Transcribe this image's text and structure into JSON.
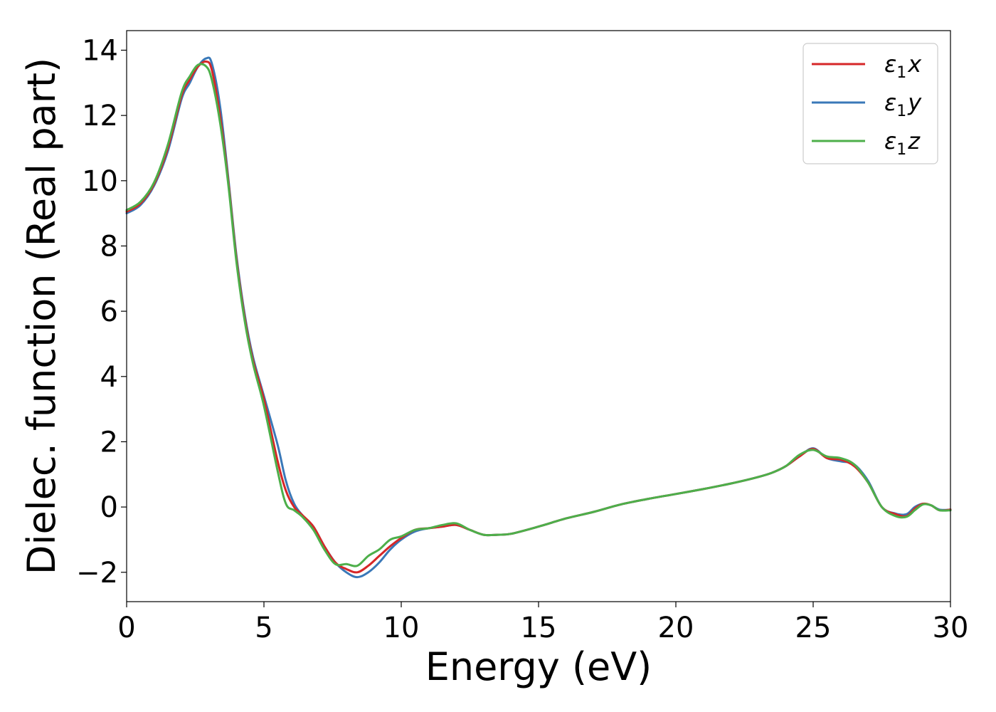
{
  "chart_data": {
    "type": "line",
    "xlabel": "Energy (eV)",
    "ylabel": "Dielec. function (Real part)",
    "xlim": [
      0,
      30
    ],
    "ylim": [
      -2.9,
      14.6
    ],
    "xticks": [
      0,
      5,
      10,
      15,
      20,
      25,
      30
    ],
    "yticks": [
      -2,
      0,
      2,
      4,
      6,
      8,
      10,
      12,
      14
    ],
    "xtick_labels": [
      "0",
      "5",
      "10",
      "15",
      "20",
      "25",
      "30"
    ],
    "ytick_labels": [
      "−2",
      "0",
      "2",
      "4",
      "6",
      "8",
      "10",
      "12",
      "14"
    ],
    "grid": false,
    "legend_position": "top-right",
    "series": [
      {
        "name": "ε1x",
        "label_base": "ε",
        "label_sub": "1",
        "label_suffix": "x",
        "color": "#d62728",
        "x": [
          0,
          0.5,
          1.0,
          1.5,
          2.0,
          2.3,
          2.6,
          2.9,
          3.1,
          3.4,
          3.7,
          4.0,
          4.3,
          4.6,
          5.0,
          5.5,
          5.8,
          6.1,
          6.4,
          6.8,
          7.2,
          7.6,
          8.0,
          8.4,
          8.8,
          9.2,
          9.6,
          10.0,
          10.5,
          11.0,
          11.5,
          12.0,
          12.5,
          13.0,
          13.5,
          14.0,
          15.0,
          16.0,
          17.0,
          18.0,
          19.0,
          20.0,
          21.0,
          22.0,
          23.0,
          23.5,
          24.0,
          24.5,
          25.0,
          25.5,
          26.0,
          26.5,
          27.0,
          27.5,
          28.0,
          28.4,
          28.7,
          29.0,
          29.3,
          29.6,
          30.0
        ],
        "y": [
          9.05,
          9.3,
          9.9,
          11.0,
          12.6,
          13.1,
          13.5,
          13.65,
          13.4,
          12.0,
          10.0,
          7.6,
          5.8,
          4.5,
          3.3,
          1.4,
          0.5,
          0.0,
          -0.25,
          -0.6,
          -1.2,
          -1.7,
          -1.9,
          -2.0,
          -1.8,
          -1.5,
          -1.2,
          -0.95,
          -0.7,
          -0.65,
          -0.6,
          -0.55,
          -0.7,
          -0.85,
          -0.85,
          -0.82,
          -0.6,
          -0.35,
          -0.15,
          0.08,
          0.25,
          0.4,
          0.55,
          0.72,
          0.92,
          1.05,
          1.25,
          1.55,
          1.78,
          1.5,
          1.45,
          1.25,
          0.75,
          0.0,
          -0.22,
          -0.28,
          -0.05,
          0.1,
          0.05,
          -0.1,
          -0.08
        ]
      },
      {
        "name": "ε1y",
        "label_base": "ε",
        "label_sub": "1",
        "label_suffix": "y",
        "color": "#3a78b8",
        "x": [
          0,
          0.5,
          1.0,
          1.5,
          2.0,
          2.3,
          2.6,
          2.9,
          3.1,
          3.4,
          3.7,
          4.0,
          4.3,
          4.6,
          5.0,
          5.5,
          5.8,
          6.1,
          6.4,
          6.8,
          7.2,
          7.6,
          8.0,
          8.4,
          8.8,
          9.2,
          9.6,
          10.0,
          10.5,
          11.0,
          11.5,
          12.0,
          12.5,
          13.0,
          13.5,
          14.0,
          15.0,
          16.0,
          17.0,
          18.0,
          19.0,
          20.0,
          21.0,
          22.0,
          23.0,
          23.5,
          24.0,
          24.5,
          25.0,
          25.5,
          26.0,
          26.5,
          27.0,
          27.5,
          28.0,
          28.4,
          28.7,
          29.0,
          29.3,
          29.6,
          30.0
        ],
        "y": [
          9.0,
          9.25,
          9.85,
          10.9,
          12.5,
          13.0,
          13.5,
          13.75,
          13.6,
          12.3,
          10.1,
          7.7,
          5.9,
          4.6,
          3.4,
          1.9,
          0.8,
          0.1,
          -0.25,
          -0.6,
          -1.2,
          -1.7,
          -2.0,
          -2.15,
          -2.0,
          -1.7,
          -1.3,
          -1.0,
          -0.75,
          -0.65,
          -0.6,
          -0.55,
          -0.7,
          -0.85,
          -0.85,
          -0.82,
          -0.6,
          -0.35,
          -0.15,
          0.08,
          0.25,
          0.4,
          0.55,
          0.72,
          0.92,
          1.05,
          1.25,
          1.55,
          1.8,
          1.5,
          1.4,
          1.3,
          0.8,
          0.0,
          -0.2,
          -0.22,
          0.0,
          0.1,
          0.05,
          -0.08,
          -0.08
        ]
      },
      {
        "name": "ε1z",
        "label_base": "ε",
        "label_sub": "1",
        "label_suffix": "z",
        "color": "#4daf4a",
        "x": [
          0,
          0.5,
          1.0,
          1.5,
          2.0,
          2.3,
          2.6,
          2.9,
          3.1,
          3.4,
          3.7,
          4.0,
          4.3,
          4.6,
          5.0,
          5.5,
          5.8,
          6.1,
          6.4,
          6.8,
          7.2,
          7.6,
          8.0,
          8.4,
          8.8,
          9.2,
          9.6,
          10.0,
          10.5,
          11.0,
          11.5,
          12.0,
          12.5,
          13.0,
          13.5,
          14.0,
          15.0,
          16.0,
          17.0,
          18.0,
          19.0,
          20.0,
          21.0,
          22.0,
          23.0,
          23.5,
          24.0,
          24.5,
          25.0,
          25.5,
          26.0,
          26.5,
          27.0,
          27.5,
          28.0,
          28.4,
          28.7,
          29.0,
          29.3,
          29.6,
          30.0
        ],
        "y": [
          9.1,
          9.35,
          9.95,
          11.1,
          12.7,
          13.2,
          13.55,
          13.5,
          13.1,
          11.8,
          9.9,
          7.5,
          5.7,
          4.4,
          3.1,
          1.1,
          0.1,
          -0.1,
          -0.3,
          -0.7,
          -1.3,
          -1.75,
          -1.75,
          -1.8,
          -1.5,
          -1.3,
          -1.0,
          -0.9,
          -0.7,
          -0.65,
          -0.55,
          -0.5,
          -0.7,
          -0.85,
          -0.85,
          -0.82,
          -0.6,
          -0.35,
          -0.15,
          0.08,
          0.25,
          0.4,
          0.55,
          0.72,
          0.92,
          1.05,
          1.25,
          1.6,
          1.75,
          1.55,
          1.5,
          1.3,
          0.75,
          0.0,
          -0.28,
          -0.3,
          -0.1,
          0.08,
          0.05,
          -0.1,
          -0.1
        ]
      }
    ]
  }
}
